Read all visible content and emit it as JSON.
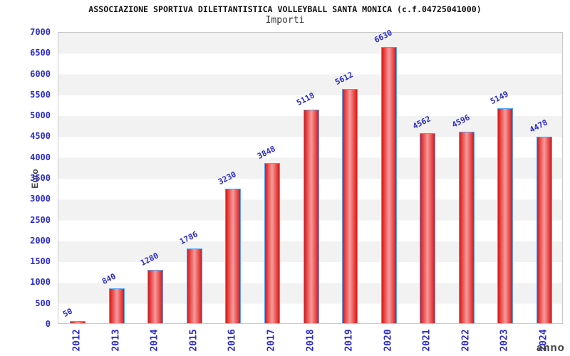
{
  "header": {
    "title": "ASSOCIAZIONE SPORTIVA DILETTANTISTICA VOLLEYBALL SANTA MONICA (c.f.04725041000)",
    "subtitle": "Importi"
  },
  "chart_data": {
    "type": "bar",
    "title": "ASSOCIAZIONE SPORTIVA DILETTANTISTICA VOLLEYBALL SANTA MONICA (c.f.04725041000)",
    "subtitle": "Importi",
    "xlabel": "anno",
    "ylabel": "Euro",
    "categories": [
      "2012",
      "2013",
      "2014",
      "2015",
      "2016",
      "2017",
      "2018",
      "2019",
      "2020",
      "2021",
      "2022",
      "2023",
      "2024"
    ],
    "values": [
      50,
      840,
      1280,
      1786,
      3230,
      3848,
      5118,
      5612,
      6630,
      4562,
      4596,
      5149,
      4478
    ],
    "ylim": [
      0,
      7000
    ],
    "ytick_step": 500,
    "grid": "alternating-horizontal-bands",
    "legend": "none",
    "colors": {
      "axis_label_blue": "#2a2ad0",
      "value_label_blue": "#2a2ad0",
      "bar_fill_edge": "#c62020",
      "bar_fill_mid": "#f59c9c",
      "bar_border_blue": "#55a0f0",
      "band_gray": "#f2f2f2",
      "band_white": "#ffffff",
      "plot_border": "#c8c8c8",
      "title_color": "#111111",
      "axis_title_color": "#3c3c3c"
    }
  }
}
